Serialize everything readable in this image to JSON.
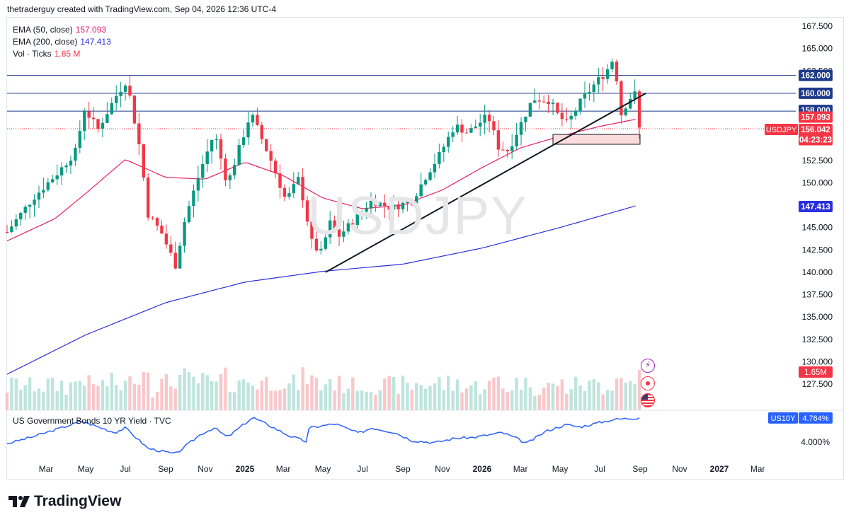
{
  "header": {
    "text": "thetraderguy created with TradingView.com, Sep 04, 2026 12:36 UTC-4"
  },
  "legend": {
    "ema50_label": "EMA (50, close)",
    "ema50_value": "157.093",
    "ema200_label": "EMA (200, close)",
    "ema200_value": "147.413",
    "vol_label": "Vol · Ticks",
    "vol_value": "1.65 M"
  },
  "watermark": "USDJPY",
  "bond_legend": "US Government Bonds 10 YR Yield · TVC",
  "footer": {
    "brand": "TradingView"
  },
  "icons": [
    "lightning-icon",
    "record-icon",
    "us-flag-icon"
  ],
  "colors": {
    "up": "#089981",
    "down": "#f23645",
    "ema50": "#e91e63",
    "ema200": "#2a2fdc",
    "level": "#1e3a8a",
    "bond": "#2962ff",
    "zone_fill": "#fbdcdc"
  },
  "chart_data": [
    {
      "type": "candlestick",
      "symbol": "USDJPY",
      "ylim": [
        127.5,
        167.5
      ],
      "y_ticks": [
        "167.500",
        "165.000",
        "162.500",
        "160.000",
        "157.500",
        "155.000",
        "152.500",
        "150.000",
        "147.500",
        "145.000",
        "142.500",
        "140.000",
        "137.500",
        "135.000",
        "132.500",
        "130.000",
        "127.500"
      ],
      "x_ticks": [
        "Mar",
        "May",
        "Jul",
        "Sep",
        "Nov",
        "2025",
        "Mar",
        "May",
        "Jul",
        "Sep",
        "Nov",
        "2026",
        "Mar",
        "May",
        "Jul",
        "Sep",
        "Nov",
        "2027",
        "Mar"
      ],
      "price_labels": [
        {
          "text": "162.000",
          "value": 162.0,
          "kind": "level"
        },
        {
          "text": "160.000",
          "value": 160.0,
          "kind": "level"
        },
        {
          "text": "158.000",
          "value": 158.0,
          "kind": "level"
        },
        {
          "text": "157.093",
          "value": 157.093,
          "kind": "ema50"
        },
        {
          "text": "156.042",
          "value": 156.042,
          "kind": "price"
        },
        {
          "text": "04:23:23",
          "value": 155.4,
          "kind": "countdown"
        },
        {
          "text": "147.413",
          "value": 147.413,
          "kind": "ema200"
        }
      ],
      "symbol_tag": "USDJPY",
      "horizontal_levels": [
        162.0,
        160.0,
        158.0
      ],
      "current_price": 156.042,
      "zone": {
        "x_start": "2026-04-20",
        "x_end": "2026-09-01",
        "y_low": 154.3,
        "y_high": 155.4
      },
      "trendline": {
        "from": [
          "2025-05-05",
          140.0
        ],
        "to": [
          "2026-09-10",
          160.0
        ]
      },
      "ema50_anchors": [
        [
          "2024-01-01",
          143.5
        ],
        [
          "2024-03-15",
          146.0
        ],
        [
          "2024-05-01",
          148.8
        ],
        [
          "2024-07-01",
          152.6
        ],
        [
          "2024-09-01",
          150.6
        ],
        [
          "2024-11-01",
          150.4
        ],
        [
          "2025-01-01",
          152.3
        ],
        [
          "2025-03-01",
          150.8
        ],
        [
          "2025-05-01",
          148.3
        ],
        [
          "2025-07-01",
          147.1
        ],
        [
          "2025-09-01",
          147.5
        ],
        [
          "2025-11-01",
          149.2
        ],
        [
          "2026-01-01",
          151.7
        ],
        [
          "2026-03-01",
          153.9
        ],
        [
          "2026-05-01",
          155.2
        ],
        [
          "2026-07-01",
          156.3
        ],
        [
          "2026-08-25",
          157.09
        ]
      ],
      "ema200_anchors": [
        [
          "2024-01-01",
          128.6
        ],
        [
          "2024-05-01",
          133.0
        ],
        [
          "2024-09-01",
          136.6
        ],
        [
          "2025-01-01",
          138.9
        ],
        [
          "2025-05-01",
          140.1
        ],
        [
          "2025-09-01",
          140.9
        ],
        [
          "2026-01-01",
          142.7
        ],
        [
          "2026-05-01",
          145.0
        ],
        [
          "2026-08-25",
          147.41
        ]
      ],
      "volume_tag": "1.65M"
    },
    {
      "type": "line",
      "name": "US Government Bonds 10 YR Yield",
      "y_tick": "4.000%",
      "last_value": "4.764%",
      "symbol_tag": "US10Y"
    }
  ]
}
